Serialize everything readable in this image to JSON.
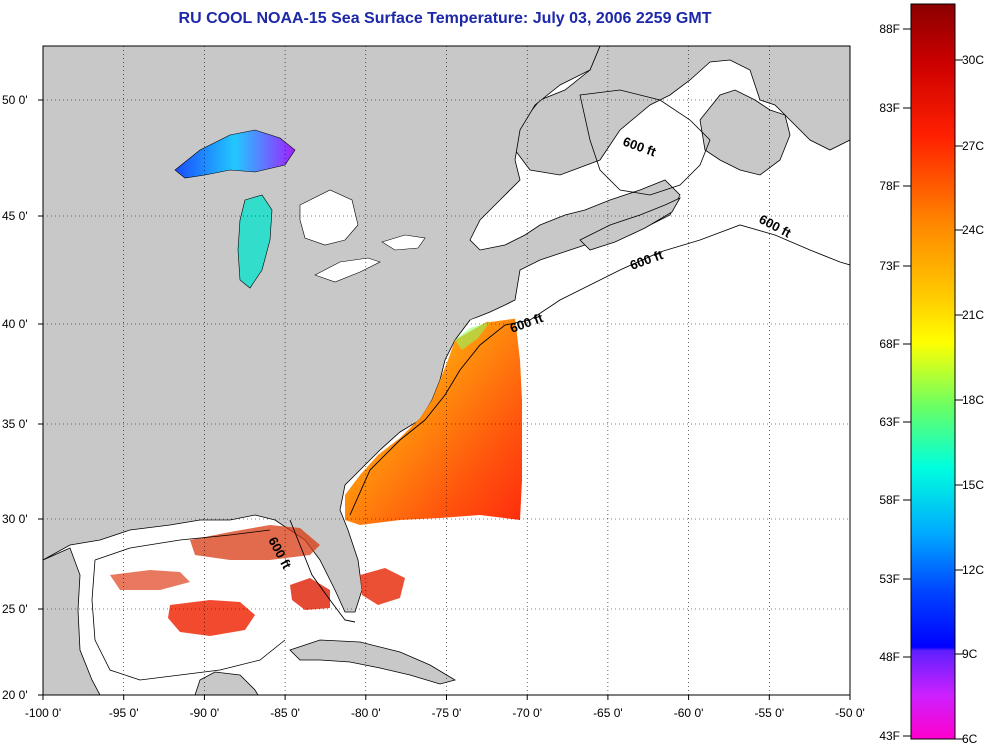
{
  "title": "RU COOL  NOAA-15  Sea Surface Temperature:  July 03, 2006 2259 GMT",
  "map": {
    "x_ticks": [
      "-100 0'",
      "-95 0'",
      "-90 0'",
      "-85 0'",
      "-80 0'",
      "-75 0'",
      "-70 0'",
      "-65 0'",
      "-60 0'",
      "-55 0'",
      "-50 0'"
    ],
    "y_ticks": [
      "50 0'",
      "45 0'",
      "40 0'",
      "35 0'",
      "30 0'",
      "25 0'",
      "20 0'"
    ],
    "contour_label": "600 ft",
    "land_color": "#c8c8c8",
    "ocean_color": "#ffffff",
    "grid": "dotted"
  },
  "colorbar": {
    "f_labels": [
      "88F",
      "83F",
      "78F",
      "73F",
      "68F",
      "63F",
      "58F",
      "53F",
      "48F",
      "43F"
    ],
    "c_labels": [
      "30C",
      "27C",
      "24C",
      "21C",
      "18C",
      "15C",
      "12C",
      "9C",
      "6C"
    ],
    "colors": [
      "#8b0000",
      "#ff2200",
      "#ff8800",
      "#ffff00",
      "#00ff88",
      "#00ffff",
      "#0088ff",
      "#0000ff",
      "#8000ff",
      "#ff00cc"
    ]
  }
}
